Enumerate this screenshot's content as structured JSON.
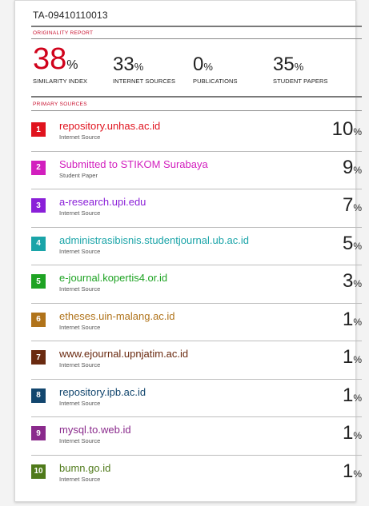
{
  "document": {
    "id": "TA-09410110013"
  },
  "report": {
    "originality_label": "ORIGINALITY REPORT",
    "primary_label": "PRIMARY SOURCES",
    "percent_sign": "%"
  },
  "stats": [
    {
      "value": "38",
      "label": "SIMILARITY INDEX",
      "color": "#d0021b"
    },
    {
      "value": "33",
      "label": "INTERNET SOURCES"
    },
    {
      "value": "0",
      "label": "PUBLICATIONS"
    },
    {
      "value": "35",
      "label": "STUDENT PAPERS"
    }
  ],
  "sources": [
    {
      "rank": "1",
      "name": "repository.unhas.ac.id",
      "type": "Internet Source",
      "value": "10",
      "color": "#e0131e"
    },
    {
      "rank": "2",
      "name": "Submitted to STIKOM Surabaya",
      "type": "Student Paper",
      "value": "9",
      "color": "#d21fbe"
    },
    {
      "rank": "3",
      "name": "a-research.upi.edu",
      "type": "Internet Source",
      "value": "7",
      "color": "#8a1fd8"
    },
    {
      "rank": "4",
      "name": "administrasibisnis.studentjournal.ub.ac.id",
      "type": "Internet Source",
      "value": "5",
      "color": "#1aa4a8"
    },
    {
      "rank": "5",
      "name": "e-journal.kopertis4.or.id",
      "type": "Internet Source",
      "value": "3",
      "color": "#1ea323"
    },
    {
      "rank": "6",
      "name": "etheses.uin-malang.ac.id",
      "type": "Internet Source",
      "value": "1",
      "color": "#b0731a"
    },
    {
      "rank": "7",
      "name": "www.ejournal.upnjatim.ac.id",
      "type": "Internet Source",
      "value": "1",
      "color": "#6a2a10"
    },
    {
      "rank": "8",
      "name": "repository.ipb.ac.id",
      "type": "Internet Source",
      "value": "1",
      "color": "#12466e"
    },
    {
      "rank": "9",
      "name": "mysql.to.web.id",
      "type": "Internet Source",
      "value": "1",
      "color": "#8a2a8c"
    },
    {
      "rank": "10",
      "name": "bumn.go.id",
      "type": "Internet Source",
      "value": "1",
      "color": "#4f7a1a"
    }
  ]
}
